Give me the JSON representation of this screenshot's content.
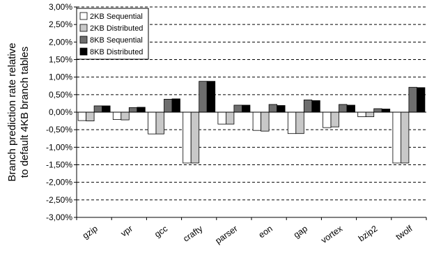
{
  "chart_data": {
    "type": "bar",
    "title": "",
    "xlabel": "",
    "ylabel": [
      "Branch prediction rate relative",
      "to default 4KB branch tables"
    ],
    "ylim": [
      -3.0,
      3.0
    ],
    "yticks": [
      "3,00%",
      "2,50%",
      "2,00%",
      "1,50%",
      "1,00%",
      "0,50%",
      "0,00%",
      "-0,50%",
      "-1,00%",
      "-1,50%",
      "-2,00%",
      "-2,50%",
      "-3,00%"
    ],
    "ytick_values": [
      3.0,
      2.5,
      2.0,
      1.5,
      1.0,
      0.5,
      0.0,
      -0.5,
      -1.0,
      -1.5,
      -2.0,
      -2.5,
      -3.0
    ],
    "grid": "horizontal-dashed",
    "legend_position": "top-left",
    "categories": [
      "gzip",
      "vpr",
      "gcc",
      "crafty",
      "parser",
      "eon",
      "gap",
      "vortex",
      "bzip2",
      "twolf"
    ],
    "series": [
      {
        "name": "2KB Sequential",
        "color": "#ffffff",
        "values": [
          -0.24,
          -0.21,
          -0.62,
          -1.45,
          -0.34,
          -0.52,
          -0.61,
          -0.44,
          -0.13,
          -1.45
        ]
      },
      {
        "name": "2KB Distributed",
        "color": "#c8c8c8",
        "values": [
          -0.25,
          -0.22,
          -0.62,
          -1.45,
          -0.34,
          -0.54,
          -0.61,
          -0.42,
          -0.13,
          -1.45
        ]
      },
      {
        "name": "8KB Sequential",
        "color": "#6e6e6e",
        "values": [
          0.18,
          0.13,
          0.37,
          0.88,
          0.2,
          0.22,
          0.35,
          0.22,
          0.1,
          0.71
        ]
      },
      {
        "name": "8KB Distributed",
        "color": "#000000",
        "values": [
          0.18,
          0.14,
          0.38,
          0.88,
          0.2,
          0.19,
          0.33,
          0.2,
          0.09,
          0.7
        ]
      }
    ]
  }
}
